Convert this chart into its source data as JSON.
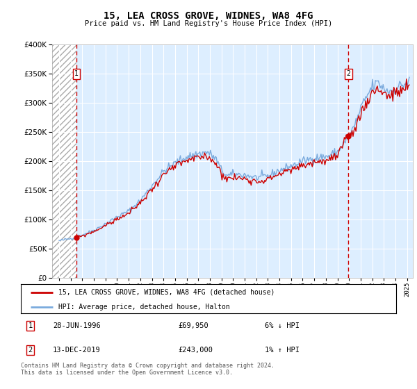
{
  "title": "15, LEA CROSS GROVE, WIDNES, WA8 4FG",
  "subtitle": "Price paid vs. HM Land Registry's House Price Index (HPI)",
  "ytick_vals": [
    0,
    50000,
    100000,
    150000,
    200000,
    250000,
    300000,
    350000,
    400000
  ],
  "ylim": [
    0,
    400000
  ],
  "xlim_start": 1994.4,
  "xlim_end": 2025.5,
  "hpi_color": "#7aaadd",
  "price_color": "#cc0000",
  "dashed_color": "#cc0000",
  "bg_plot": "#ddeeff",
  "legend_label_red": "15, LEA CROSS GROVE, WIDNES, WA8 4FG (detached house)",
  "legend_label_blue": "HPI: Average price, detached house, Halton",
  "sale1_x": 1996.49,
  "sale1_y": 69950,
  "sale1_label": "1",
  "sale1_date": "28-JUN-1996",
  "sale1_price": "£69,950",
  "sale1_hpi": "6% ↓ HPI",
  "sale2_x": 2019.95,
  "sale2_y": 243000,
  "sale2_label": "2",
  "sale2_date": "13-DEC-2019",
  "sale2_price": "£243,000",
  "sale2_hpi": "1% ↑ HPI",
  "footer": "Contains HM Land Registry data © Crown copyright and database right 2024.\nThis data is licensed under the Open Government Licence v3.0."
}
